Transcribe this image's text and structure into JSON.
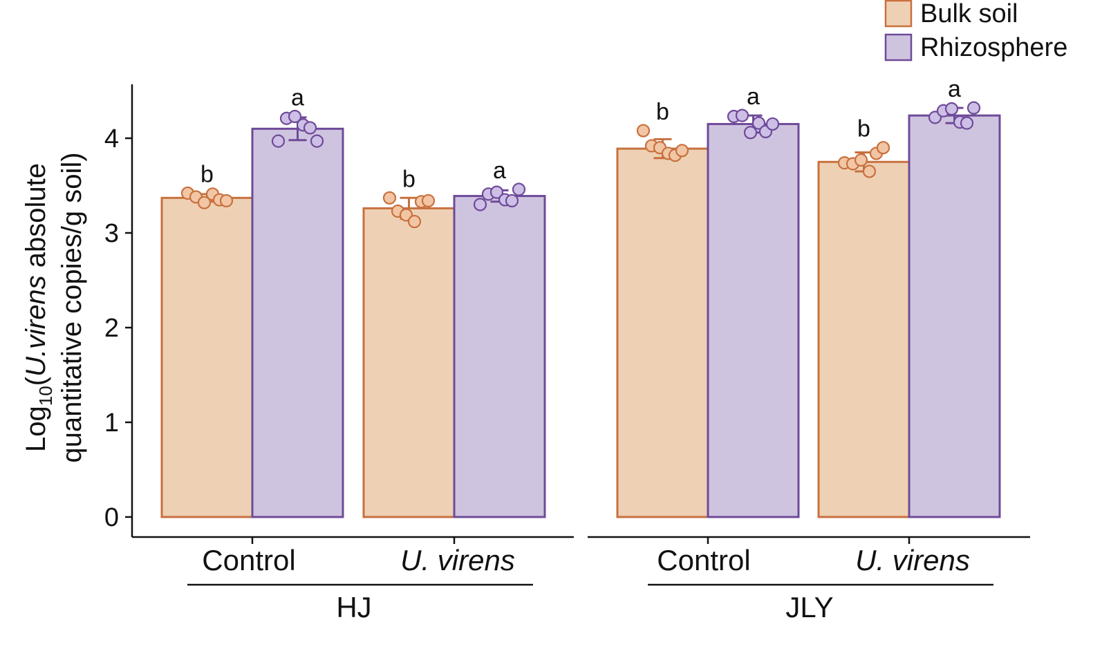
{
  "chart_data": {
    "type": "bar",
    "ylabel": {
      "line1_prefix": "Log",
      "line1_sub": "10",
      "line1_open": "(",
      "line1_italic": "U.virens",
      "line1_rest": " absolute",
      "line2": "quantitative copies/g soil)"
    },
    "ylim": [
      0,
      4.5
    ],
    "yticks": [
      "0",
      "1",
      "2",
      "3",
      "4"
    ],
    "legend": {
      "position": "top-right",
      "entries": [
        "Bulk soil",
        "Rhizosphere"
      ]
    },
    "colors": {
      "bulk_fill": "#eed1b5",
      "bulk_stroke": "#c8703e",
      "bulk_point": "#f2c6a4",
      "rhizo_fill": "#cfc4df",
      "rhizo_stroke": "#6e4a99",
      "rhizo_point": "#cdbfe6"
    },
    "series": [
      "Bulk soil",
      "Rhizosphere"
    ],
    "panels": [
      {
        "group": "HJ",
        "categories": [
          {
            "label": "Control",
            "italic": false,
            "bars": [
              {
                "series": "Bulk soil",
                "value": 3.37,
                "sd": 0.04,
                "sig": "b",
                "points": [
                  3.42,
                  3.38,
                  3.32,
                  3.41,
                  3.35,
                  3.34
                ]
              },
              {
                "series": "Rhizosphere",
                "value": 4.1,
                "sd": 0.12,
                "sig": "a",
                "points": [
                  3.97,
                  4.21,
                  4.23,
                  4.14,
                  4.11,
                  3.97
                ]
              }
            ]
          },
          {
            "label": "U. virens",
            "italic": true,
            "bars": [
              {
                "series": "Bulk soil",
                "value": 3.26,
                "sd": 0.11,
                "sig": "b",
                "points": [
                  3.37,
                  3.23,
                  3.19,
                  3.12,
                  3.33,
                  3.34
                ]
              },
              {
                "series": "Rhizosphere",
                "value": 3.39,
                "sd": 0.06,
                "sig": "a",
                "points": [
                  3.3,
                  3.41,
                  3.43,
                  3.35,
                  3.34,
                  3.46
                ]
              }
            ]
          }
        ]
      },
      {
        "group": "JLY",
        "categories": [
          {
            "label": "Control",
            "italic": false,
            "bars": [
              {
                "series": "Bulk soil",
                "value": 3.89,
                "sd": 0.1,
                "sig": "b",
                "points": [
                  4.08,
                  3.92,
                  3.9,
                  3.84,
                  3.82,
                  3.87
                ]
              },
              {
                "series": "Rhizosphere",
                "value": 4.15,
                "sd": 0.09,
                "sig": "a",
                "points": [
                  4.23,
                  4.24,
                  4.06,
                  4.16,
                  4.07,
                  4.15
                ]
              }
            ]
          },
          {
            "label": "U. virens",
            "italic": true,
            "bars": [
              {
                "series": "Bulk soil",
                "value": 3.75,
                "sd": 0.1,
                "sig": "b",
                "points": [
                  3.74,
                  3.73,
                  3.77,
                  3.65,
                  3.84,
                  3.9
                ]
              },
              {
                "series": "Rhizosphere",
                "value": 4.24,
                "sd": 0.08,
                "sig": "a",
                "points": [
                  4.22,
                  4.29,
                  4.31,
                  4.17,
                  4.16,
                  4.32
                ]
              }
            ]
          }
        ]
      }
    ]
  }
}
